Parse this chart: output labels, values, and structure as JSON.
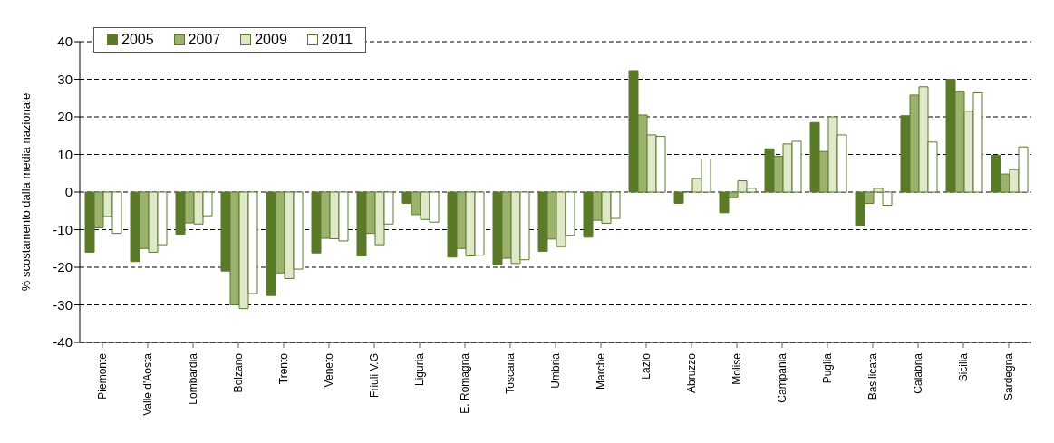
{
  "chart_data": {
    "type": "bar",
    "ylabel": "% scostamento dalla media nazionale",
    "categories": [
      "Piemonte",
      "Valle d'Aosta",
      "Lombardia",
      "Bolzano",
      "Trento",
      "Veneto",
      "Friuli V.G",
      "Liguria",
      "E. Romagna",
      "Toscana",
      "Umbria",
      "Marche",
      "Lazio",
      "Abruzzo",
      "Molise",
      "Campania",
      "Puglia",
      "Basilicata",
      "Calabria",
      "Sicilia",
      "Sardegna"
    ],
    "series": [
      {
        "name": "2005",
        "color": "#5a7a2a",
        "values": [
          -16,
          -18.5,
          -11.2,
          -21,
          -27.5,
          -16.2,
          -17,
          -3,
          -17.3,
          -19.3,
          -15.8,
          -12,
          32.3,
          -3,
          -5.5,
          11.5,
          18.5,
          -9,
          20.3,
          30,
          9.8
        ]
      },
      {
        "name": "2007",
        "color": "#9cb36e",
        "values": [
          -9.5,
          -15,
          -8.2,
          -30,
          -21.5,
          -12.3,
          -11,
          -6,
          -15,
          -17.6,
          -12.5,
          -7.5,
          20.5,
          0.1,
          -1.5,
          9.5,
          10.8,
          -3,
          25.8,
          26.7,
          4.8
        ]
      },
      {
        "name": "2009",
        "color": "#dfe8c8",
        "values": [
          -6.5,
          -16,
          -8.5,
          -31,
          -23,
          -12.4,
          -14,
          -7.3,
          -17,
          -19,
          -14.5,
          -8.3,
          15.2,
          3.6,
          3,
          12.8,
          20,
          1,
          28,
          21.5,
          6
        ]
      },
      {
        "name": "2011",
        "color": "#ffffff",
        "values": [
          -11,
          -14,
          -6.3,
          -27,
          -20.5,
          -13,
          -8.5,
          -8,
          -16.8,
          -18,
          -11.5,
          -7,
          14.8,
          8.8,
          1,
          13.5,
          15.2,
          -3.5,
          13.3,
          26.4,
          12
        ]
      }
    ],
    "ylim": [
      -40,
      40
    ],
    "yticks": [
      -40,
      -30,
      -20,
      -10,
      0,
      10,
      20,
      30,
      40
    ],
    "grid": "y",
    "legend": "top left"
  }
}
